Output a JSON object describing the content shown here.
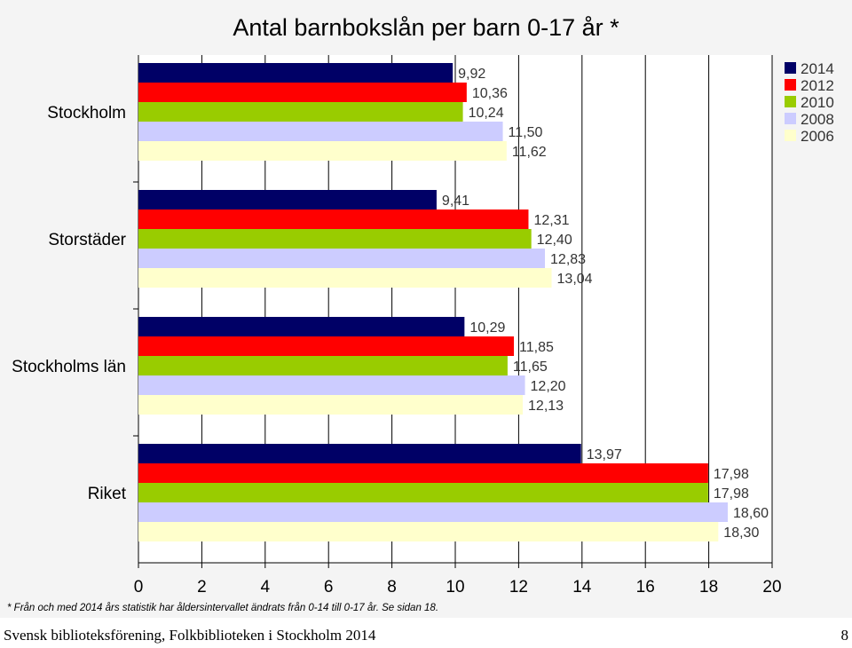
{
  "chart_data": {
    "type": "bar",
    "orientation": "horizontal",
    "title": "Antal barnbokslån per barn 0-17 år *",
    "categories": [
      "Stockholm",
      "Storstäder",
      "Stockholms län",
      "Riket"
    ],
    "series": [
      {
        "name": "2014",
        "color": "#000066",
        "values": [
          9.92,
          9.41,
          10.29,
          13.97
        ],
        "labels": [
          "9,92",
          "9,41",
          "10,29",
          "13,97"
        ]
      },
      {
        "name": "2012",
        "color": "#ff0000",
        "values": [
          10.36,
          12.31,
          11.85,
          17.98
        ],
        "labels": [
          "10,36",
          "12,31",
          "11,85",
          "17,98"
        ]
      },
      {
        "name": "2010",
        "color": "#99cc00",
        "values": [
          10.24,
          12.4,
          11.65,
          17.98
        ],
        "labels": [
          "10,24",
          "12,40",
          "11,65",
          "17,98"
        ]
      },
      {
        "name": "2008",
        "color": "#ccccff",
        "values": [
          11.5,
          12.83,
          12.2,
          18.6
        ],
        "labels": [
          "11,50",
          "12,83",
          "12,20",
          "18,60"
        ]
      },
      {
        "name": "2006",
        "color": "#ffffcc",
        "values": [
          11.62,
          13.04,
          12.13,
          18.3
        ],
        "labels": [
          "11,62",
          "13,04",
          "12,13",
          "18,30"
        ]
      }
    ],
    "xlim": [
      0,
      20
    ],
    "xticks": [
      0,
      2,
      4,
      6,
      8,
      10,
      12,
      14,
      16,
      18,
      20
    ],
    "grid": "vertical",
    "legend_position": "top-right",
    "footnote": "* Från och med 2014 års statistik har åldersintervallet ändrats från 0-14 till 0-17 år. Se sidan 18."
  },
  "footer": {
    "left": "Svensk biblioteksförening, Folkbiblioteken i Stockholm 2014",
    "page_number": "8"
  }
}
